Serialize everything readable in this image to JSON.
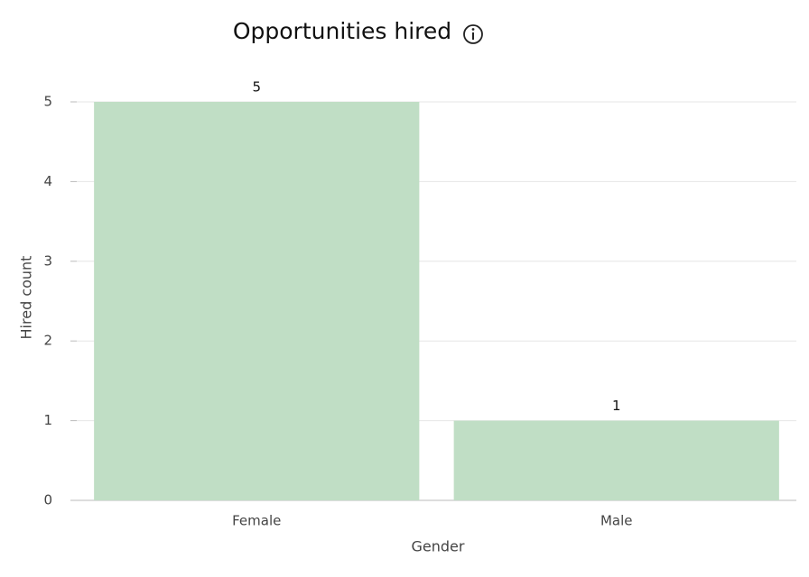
{
  "chart_data": {
    "type": "bar",
    "title": "Opportunities hired",
    "x_label": "Gender",
    "y_label": "Hired count",
    "categories": [
      "Female",
      "Male"
    ],
    "values": [
      5,
      1
    ],
    "color": "#c0dec5",
    "ylim": [
      0,
      5
    ],
    "yticks": [
      0,
      1,
      2,
      3,
      4,
      5
    ],
    "grid": true
  }
}
